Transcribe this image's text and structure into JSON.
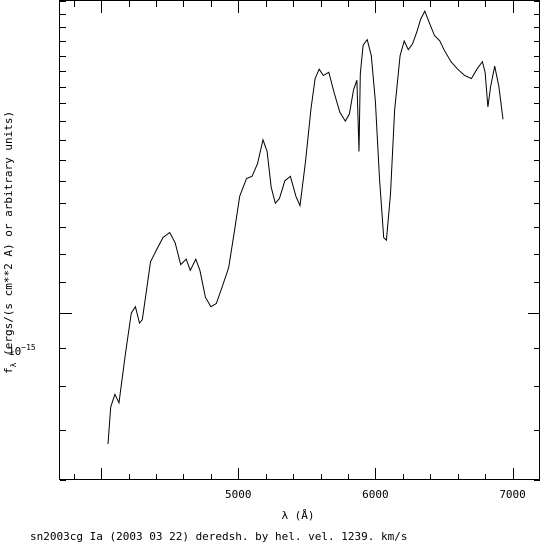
{
  "chart_data": {
    "type": "line",
    "xlabel": "λ (Å)",
    "ylabel": "f",
    "ylabel_sub": "λ",
    "ylabel_rest": " (ergs/(s cm**2 A) or arbitrary units)",
    "caption": "sn2003cg Ia (2003 03 22) deredsh. by hel. vel.  1239. km/s",
    "y_scale": "log",
    "y_tick_label": {
      "base": "10",
      "exp": "−15"
    },
    "xlim": [
      3700,
      7200
    ],
    "ylim": [
      6e-16,
      2.6e-15
    ],
    "x_ticks": [
      5000,
      6000,
      7000
    ],
    "x_tick_labels": [
      "5000",
      "6000",
      "7000"
    ],
    "series": [
      {
        "values": [
          [
            4050,
            6.7e-16
          ],
          [
            4070,
            7.5e-16
          ],
          [
            4100,
            7.8e-16
          ],
          [
            4130,
            7.6e-16
          ],
          [
            4150,
            8.1e-16
          ],
          [
            4180,
            8.9e-16
          ],
          [
            4220,
            1e-15
          ],
          [
            4250,
            1.02e-15
          ],
          [
            4280,
            9.7e-16
          ],
          [
            4300,
            9.8e-16
          ],
          [
            4330,
            1.07e-15
          ],
          [
            4360,
            1.17e-15
          ],
          [
            4400,
            1.21e-15
          ],
          [
            4450,
            1.26e-15
          ],
          [
            4500,
            1.28e-15
          ],
          [
            4540,
            1.24e-15
          ],
          [
            4580,
            1.16e-15
          ],
          [
            4620,
            1.18e-15
          ],
          [
            4650,
            1.14e-15
          ],
          [
            4690,
            1.18e-15
          ],
          [
            4720,
            1.14e-15
          ],
          [
            4760,
            1.05e-15
          ],
          [
            4800,
            1.02e-15
          ],
          [
            4840,
            1.03e-15
          ],
          [
            4880,
            1.08e-15
          ],
          [
            4930,
            1.15e-15
          ],
          [
            4970,
            1.28e-15
          ],
          [
            5010,
            1.43e-15
          ],
          [
            5060,
            1.51e-15
          ],
          [
            5100,
            1.52e-15
          ],
          [
            5140,
            1.58e-15
          ],
          [
            5180,
            1.7e-15
          ],
          [
            5210,
            1.64e-15
          ],
          [
            5240,
            1.47e-15
          ],
          [
            5270,
            1.4e-15
          ],
          [
            5300,
            1.42e-15
          ],
          [
            5340,
            1.5e-15
          ],
          [
            5380,
            1.52e-15
          ],
          [
            5420,
            1.43e-15
          ],
          [
            5450,
            1.39e-15
          ],
          [
            5490,
            1.59e-15
          ],
          [
            5530,
            1.87e-15
          ],
          [
            5560,
            2.05e-15
          ],
          [
            5590,
            2.11e-15
          ],
          [
            5620,
            2.07e-15
          ],
          [
            5660,
            2.09e-15
          ],
          [
            5700,
            1.96e-15
          ],
          [
            5740,
            1.85e-15
          ],
          [
            5780,
            1.8e-15
          ],
          [
            5810,
            1.84e-15
          ],
          [
            5840,
            1.98e-15
          ],
          [
            5865,
            2.04e-15
          ],
          [
            5880,
            1.64e-15
          ],
          [
            5890,
            2.08e-15
          ],
          [
            5910,
            2.27e-15
          ],
          [
            5940,
            2.31e-15
          ],
          [
            5970,
            2.2e-15
          ],
          [
            6000,
            1.91e-15
          ],
          [
            6030,
            1.51e-15
          ],
          [
            6060,
            1.26e-15
          ],
          [
            6080,
            1.25e-15
          ],
          [
            6110,
            1.44e-15
          ],
          [
            6140,
            1.86e-15
          ],
          [
            6180,
            2.2e-15
          ],
          [
            6210,
            2.3e-15
          ],
          [
            6240,
            2.24e-15
          ],
          [
            6270,
            2.28e-15
          ],
          [
            6300,
            2.36e-15
          ],
          [
            6330,
            2.46e-15
          ],
          [
            6360,
            2.52e-15
          ],
          [
            6390,
            2.44e-15
          ],
          [
            6430,
            2.34e-15
          ],
          [
            6470,
            2.3e-15
          ],
          [
            6500,
            2.24e-15
          ],
          [
            6550,
            2.16e-15
          ],
          [
            6600,
            2.11e-15
          ],
          [
            6650,
            2.07e-15
          ],
          [
            6700,
            2.05e-15
          ],
          [
            6740,
            2.11e-15
          ],
          [
            6780,
            2.16e-15
          ],
          [
            6800,
            2.09e-15
          ],
          [
            6820,
            1.88e-15
          ],
          [
            6840,
            2e-15
          ],
          [
            6870,
            2.13e-15
          ],
          [
            6900,
            2e-15
          ],
          [
            6930,
            1.81e-15
          ]
        ]
      }
    ]
  }
}
